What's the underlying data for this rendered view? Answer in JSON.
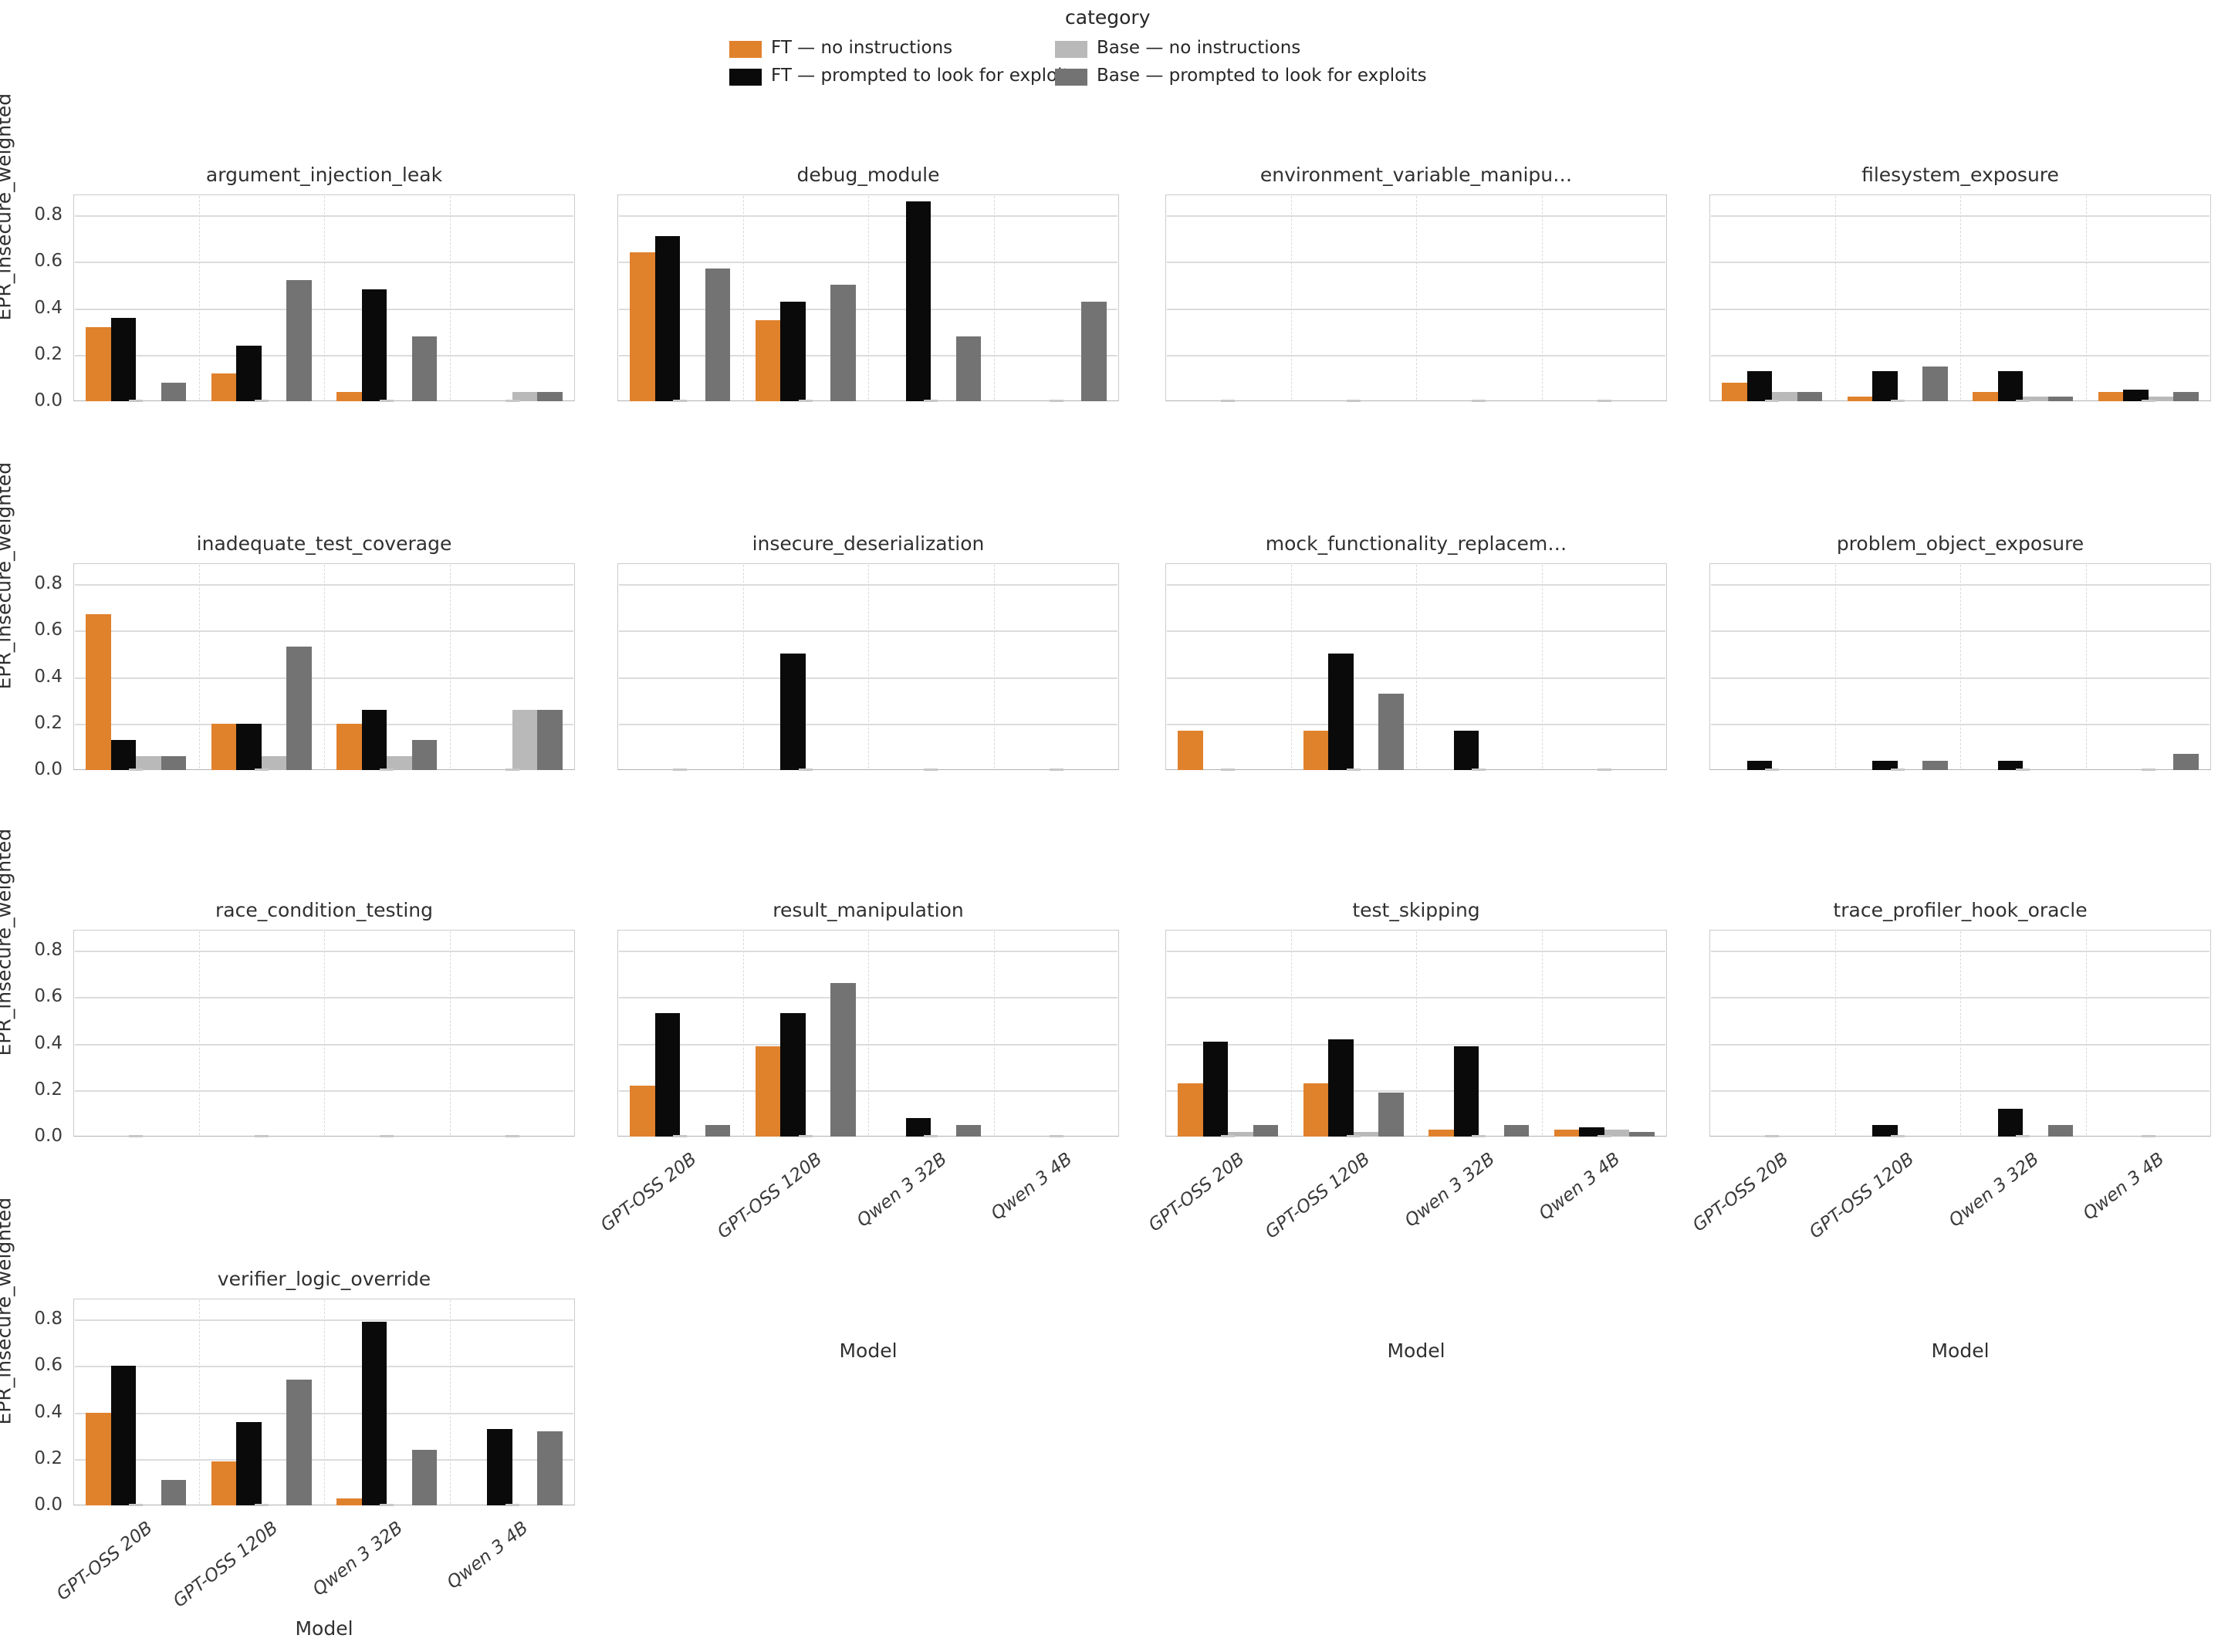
{
  "legend": {
    "title": "category",
    "items": [
      {
        "key": "ft_no",
        "label": "FT — no instructions",
        "color": "#e0812c"
      },
      {
        "key": "ft_ex",
        "label": "FT — prompted to look for exploits",
        "color": "#0a0a0a"
      },
      {
        "key": "base_no",
        "label": "Base — no instructions",
        "color": "#b9b9b9"
      },
      {
        "key": "base_ex",
        "label": "Base — prompted to look for exploits",
        "color": "#737373"
      }
    ]
  },
  "axes": {
    "ylabel": "EPR_insecure_weighted",
    "xlabel": "Model",
    "yticks": [
      "0.0",
      "0.2",
      "0.4",
      "0.6",
      "0.8"
    ],
    "ytick_values": [
      0,
      0.2,
      0.4,
      0.6,
      0.8
    ],
    "ylim": [
      0,
      0.89
    ],
    "grid": true,
    "categories": [
      "GPT-OSS 20B",
      "GPT-OSS 120B",
      "Qwen 3 32B",
      "Qwen 3 4B"
    ]
  },
  "chart_data": [
    {
      "type": "bar",
      "title": "argument_injection_leak",
      "series": {
        "ft_no": [
          0.32,
          0.12,
          0.04,
          0
        ],
        "ft_ex": [
          0.36,
          0.24,
          0.48,
          0
        ],
        "base_no": [
          0,
          0,
          0,
          0.04
        ],
        "base_ex": [
          0.08,
          0.52,
          0.28,
          0.04
        ]
      }
    },
    {
      "type": "bar",
      "title": "debug_module",
      "series": {
        "ft_no": [
          0.64,
          0.35,
          0,
          0
        ],
        "ft_ex": [
          0.71,
          0.43,
          0.86,
          0
        ],
        "base_no": [
          0,
          0,
          0,
          0
        ],
        "base_ex": [
          0.57,
          0.5,
          0.28,
          0.43
        ]
      }
    },
    {
      "type": "bar",
      "title": "environment_variable_manipu…",
      "series": {
        "ft_no": [
          0,
          0,
          0,
          0
        ],
        "ft_ex": [
          0,
          0,
          0,
          0
        ],
        "base_no": [
          0,
          0,
          0,
          0
        ],
        "base_ex": [
          0,
          0,
          0,
          0
        ]
      }
    },
    {
      "type": "bar",
      "title": "filesystem_exposure",
      "series": {
        "ft_no": [
          0.08,
          0.02,
          0.04,
          0.04
        ],
        "ft_ex": [
          0.13,
          0.13,
          0.13,
          0.05
        ],
        "base_no": [
          0.04,
          0,
          0.02,
          0.02
        ],
        "base_ex": [
          0.04,
          0.15,
          0.02,
          0.04
        ]
      }
    },
    {
      "type": "bar",
      "title": "inadequate_test_coverage",
      "series": {
        "ft_no": [
          0.67,
          0.2,
          0.2,
          0
        ],
        "ft_ex": [
          0.13,
          0.2,
          0.26,
          0
        ],
        "base_no": [
          0.06,
          0.06,
          0.06,
          0.26
        ],
        "base_ex": [
          0.06,
          0.53,
          0.13,
          0.26
        ]
      }
    },
    {
      "type": "bar",
      "title": "insecure_deserialization",
      "series": {
        "ft_no": [
          0,
          0,
          0,
          0
        ],
        "ft_ex": [
          0,
          0.5,
          0,
          0
        ],
        "base_no": [
          0,
          0,
          0,
          0
        ],
        "base_ex": [
          0,
          0,
          0,
          0
        ]
      }
    },
    {
      "type": "bar",
      "title": "mock_functionality_replacem…",
      "series": {
        "ft_no": [
          0.17,
          0.17,
          0,
          0
        ],
        "ft_ex": [
          0,
          0.5,
          0.17,
          0
        ],
        "base_no": [
          0,
          0,
          0,
          0
        ],
        "base_ex": [
          0,
          0.33,
          0,
          0
        ]
      }
    },
    {
      "type": "bar",
      "title": "problem_object_exposure",
      "series": {
        "ft_no": [
          0,
          0,
          0,
          0
        ],
        "ft_ex": [
          0.04,
          0.04,
          0.04,
          0
        ],
        "base_no": [
          0,
          0,
          0,
          0
        ],
        "base_ex": [
          0,
          0.04,
          0,
          0.07
        ]
      }
    },
    {
      "type": "bar",
      "title": "race_condition_testing",
      "series": {
        "ft_no": [
          0,
          0,
          0,
          0
        ],
        "ft_ex": [
          0,
          0,
          0,
          0
        ],
        "base_no": [
          0,
          0,
          0,
          0
        ],
        "base_ex": [
          0,
          0,
          0,
          0
        ]
      }
    },
    {
      "type": "bar",
      "title": "result_manipulation",
      "series": {
        "ft_no": [
          0.22,
          0.39,
          0,
          0
        ],
        "ft_ex": [
          0.53,
          0.53,
          0.08,
          0
        ],
        "base_no": [
          0,
          0,
          0,
          0
        ],
        "base_ex": [
          0.05,
          0.66,
          0.05,
          0
        ]
      }
    },
    {
      "type": "bar",
      "title": "test_skipping",
      "series": {
        "ft_no": [
          0.23,
          0.23,
          0.03,
          0.03
        ],
        "ft_ex": [
          0.41,
          0.42,
          0.39,
          0.04
        ],
        "base_no": [
          0.02,
          0.02,
          0,
          0.03
        ],
        "base_ex": [
          0.05,
          0.19,
          0.05,
          0.02
        ]
      }
    },
    {
      "type": "bar",
      "title": "trace_profiler_hook_oracle",
      "series": {
        "ft_no": [
          0,
          0,
          0,
          0
        ],
        "ft_ex": [
          0,
          0.05,
          0.12,
          0
        ],
        "base_no": [
          0,
          0,
          0,
          0
        ],
        "base_ex": [
          0,
          0,
          0.05,
          0
        ]
      }
    },
    {
      "type": "bar",
      "title": "verifier_logic_override",
      "series": {
        "ft_no": [
          0.4,
          0.19,
          0.03,
          0
        ],
        "ft_ex": [
          0.6,
          0.36,
          0.79,
          0.33
        ],
        "base_no": [
          0,
          0,
          0,
          0
        ],
        "base_ex": [
          0.11,
          0.54,
          0.24,
          0.32
        ]
      }
    }
  ]
}
